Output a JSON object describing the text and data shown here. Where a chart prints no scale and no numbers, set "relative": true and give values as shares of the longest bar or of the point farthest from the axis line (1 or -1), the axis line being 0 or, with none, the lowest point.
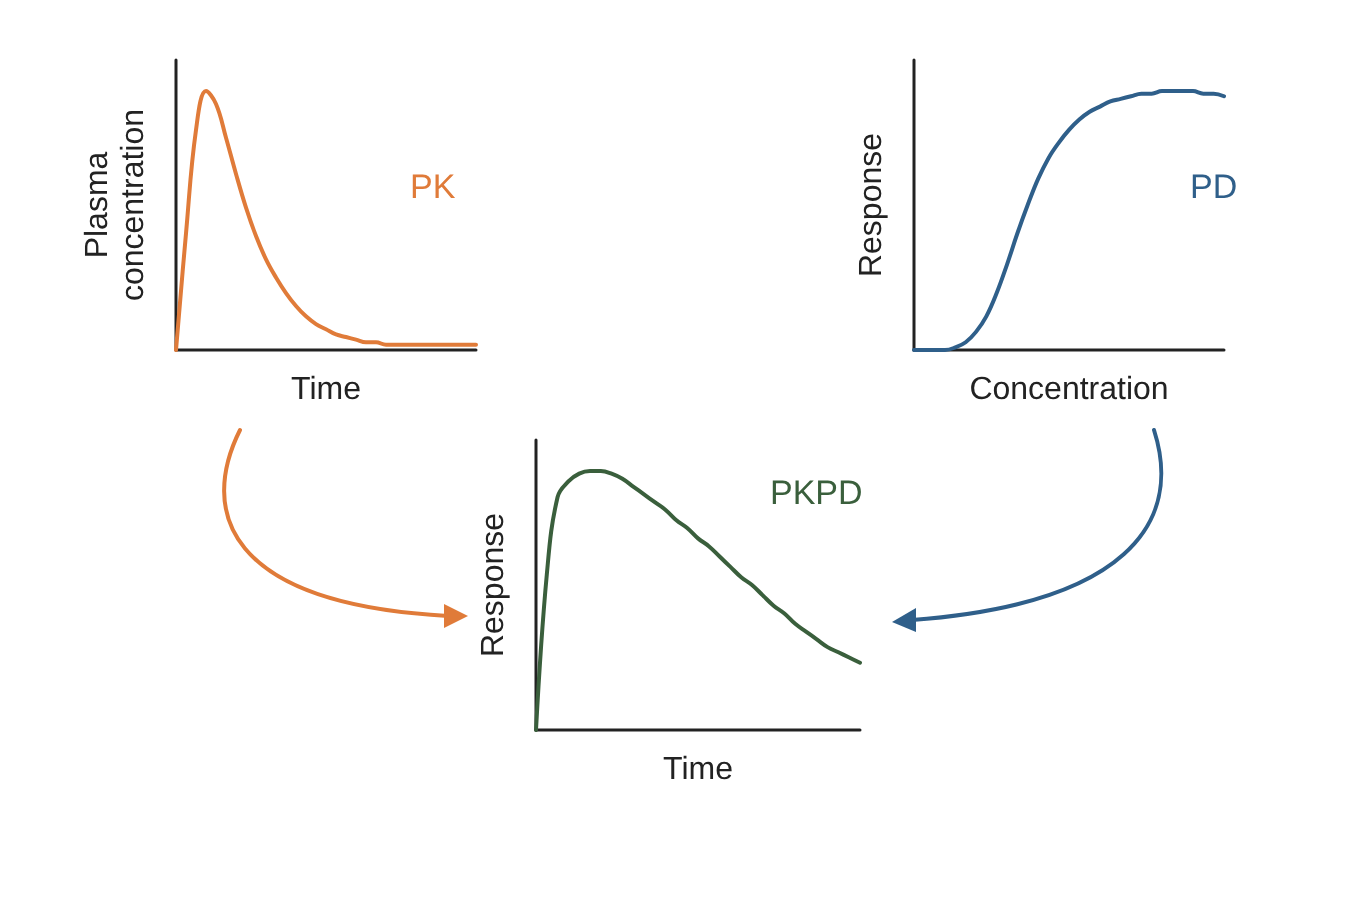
{
  "chart_data": [
    {
      "type": "line",
      "relative": true,
      "tick_labels": false,
      "xlabel": "Time",
      "ylabel": "Plasma concentration",
      "categories": [
        null,
        null,
        null,
        null,
        null,
        null,
        null,
        null,
        null,
        null,
        null,
        null,
        null,
        null,
        null,
        null,
        null,
        null,
        null,
        null,
        null,
        null,
        null,
        null,
        null,
        null,
        null,
        null,
        null,
        null,
        null
      ],
      "series": [
        {
          "name": "PK",
          "color": "#e07b39",
          "values": [
            0,
            0.45,
            0.85,
            1,
            0.95,
            0.82,
            0.68,
            0.55,
            0.44,
            0.35,
            0.28,
            0.22,
            0.17,
            0.13,
            0.1,
            0.08,
            0.06,
            0.05,
            0.04,
            0.03,
            0.03,
            0.02,
            0.02,
            0.02,
            0.02,
            0.02,
            0.02,
            0.02,
            0.02,
            0.02,
            0.02
          ]
        }
      ]
    },
    {
      "type": "line",
      "relative": true,
      "tick_labels": false,
      "xlabel": "Concentration",
      "ylabel": "Response",
      "categories": [
        null,
        null,
        null,
        null,
        null,
        null,
        null,
        null,
        null,
        null,
        null,
        null,
        null,
        null,
        null,
        null,
        null,
        null,
        null,
        null,
        null,
        null,
        null,
        null,
        null,
        null,
        null,
        null,
        null,
        null,
        null
      ],
      "series": [
        {
          "name": "PD",
          "color": "#2f5f8a",
          "values": [
            0,
            0,
            0,
            0,
            0.01,
            0.03,
            0.07,
            0.13,
            0.22,
            0.33,
            0.45,
            0.56,
            0.66,
            0.74,
            0.8,
            0.85,
            0.89,
            0.92,
            0.94,
            0.96,
            0.97,
            0.98,
            0.99,
            0.99,
            1,
            1,
            1,
            1,
            0.99,
            0.99,
            0.98
          ]
        }
      ]
    },
    {
      "type": "line",
      "relative": true,
      "tick_labels": false,
      "xlabel": "Time",
      "ylabel": "Response",
      "categories": [
        null,
        null,
        null,
        null,
        null,
        null,
        null,
        null,
        null,
        null,
        null,
        null,
        null,
        null,
        null,
        null,
        null,
        null,
        null,
        null,
        null,
        null,
        null,
        null,
        null,
        null,
        null,
        null,
        null,
        null,
        null
      ],
      "series": [
        {
          "name": "PKPD",
          "color": "#3a5f3c",
          "values": [
            0,
            0.6,
            0.9,
            0.96,
            0.99,
            1,
            1,
            0.99,
            0.97,
            0.94,
            0.91,
            0.88,
            0.85,
            0.81,
            0.78,
            0.74,
            0.71,
            0.67,
            0.63,
            0.59,
            0.56,
            0.52,
            0.48,
            0.45,
            0.41,
            0.38,
            0.35,
            0.32,
            0.3,
            0.28,
            0.26
          ]
        }
      ]
    }
  ]
}
